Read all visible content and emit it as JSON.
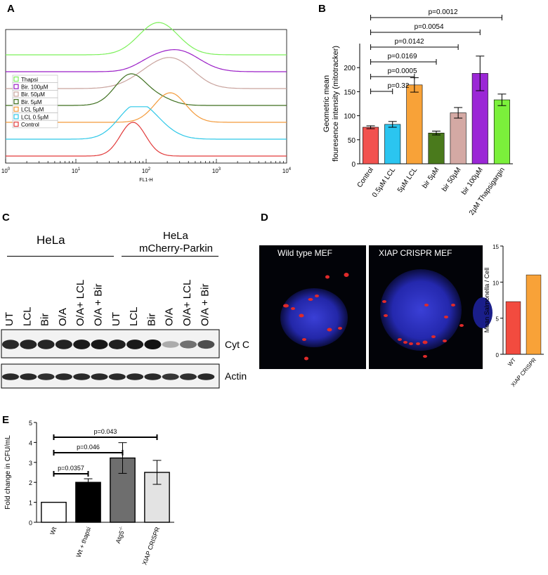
{
  "panels": {
    "A": "A",
    "B": "B",
    "C": "C",
    "D": "D",
    "E": "E"
  },
  "chart_data": [
    {
      "type": "line",
      "panel": "A",
      "xlabel": "FL1-H",
      "x_scale": "log",
      "xlim": [
        1,
        10000
      ],
      "x_ticks": [
        "10^0",
        "10^1",
        "10^2",
        "10^3",
        "10^4"
      ],
      "legend": [
        "Thapsi",
        "Bir. 100µM",
        "Bir. 50µM",
        "Bir. 5µM",
        "LCL 5µM",
        "LCL 0.5µM",
        "Control"
      ],
      "legend_placement": "left",
      "series": [
        {
          "name": "Thapsi",
          "color": "#7CF05A",
          "peak_x": 150
        },
        {
          "name": "Bir. 100µM",
          "color": "#9B1FC7",
          "peak_x": 290
        },
        {
          "name": "Bir. 50µM",
          "color": "#C9A49E",
          "peak_x": 170
        },
        {
          "name": "Bir. 5µM",
          "color": "#3E6F1E",
          "peak_x": 60
        },
        {
          "name": "LCL 5µM",
          "color": "#F39A3A",
          "peak_x": 220
        },
        {
          "name": "LCL 0.5µM",
          "color": "#2EC8E8",
          "peak_x": 70
        },
        {
          "name": "Control",
          "color": "#E23B3B",
          "peak_x": 65
        }
      ]
    },
    {
      "type": "bar",
      "panel": "B",
      "ylabel": "Geometric mean\nflouresence intensity (mitotracker)",
      "ylim": [
        0,
        250
      ],
      "y_ticks": [
        0,
        50,
        100,
        150,
        200
      ],
      "categories": [
        "Control",
        "0.5µM LCL",
        "5µM LCL",
        "bir 5µM",
        "bir 50µM",
        "bir 100µM",
        "2µM Thapsigargin"
      ],
      "values": [
        76,
        82,
        164,
        64,
        106,
        188,
        133
      ],
      "errors": [
        3,
        6,
        15,
        4,
        11,
        36,
        12
      ],
      "colors": [
        "#F2524F",
        "#2BC5F0",
        "#F8A238",
        "#4A7A1C",
        "#D4A9A4",
        "#9B27D6",
        "#7BF03B"
      ],
      "annotations": [
        {
          "text": "p=0.32",
          "from": 0,
          "to": 1
        },
        {
          "text": "p=0.0005",
          "from": 0,
          "to": 2
        },
        {
          "text": "p=0.0169",
          "from": 0,
          "to": 3
        },
        {
          "text": "p=0.0142",
          "from": 0,
          "to": 4
        },
        {
          "text": "p=0.0054",
          "from": 0,
          "to": 5
        },
        {
          "text": "p=0.0012",
          "from": 0,
          "to": 6
        }
      ]
    },
    {
      "type": "bar",
      "panel": "D",
      "ylabel": "Mean Salmonella / Cell",
      "ylim": [
        0,
        15
      ],
      "y_ticks": [
        0,
        5,
        10,
        15
      ],
      "categories": [
        "WT",
        "XIAP CRISPR"
      ],
      "values": [
        7.3,
        11
      ],
      "colors": [
        "#F24B3F",
        "#F8A238"
      ]
    },
    {
      "type": "bar",
      "panel": "E",
      "ylabel": "Fold change in CFU/mL",
      "ylim": [
        0,
        5
      ],
      "y_ticks": [
        0,
        1,
        2,
        3,
        4,
        5
      ],
      "categories": [
        "Wt",
        "Wt + thapsi",
        "Atg5-/-",
        "XIAP CRISPR"
      ],
      "category_labels": [
        "Wt",
        "Wt + thapsi",
        "Atg5",
        "XIAP CRISPR"
      ],
      "category_sup": [
        "",
        "",
        "-/-",
        ""
      ],
      "values": [
        1,
        2,
        3.22,
        2.5
      ],
      "errors": [
        0,
        0.18,
        0.77,
        0.6
      ],
      "colors": [
        "#FFFFFF",
        "#000000",
        "#6E6E6E",
        "#E3E3E3"
      ],
      "annotations": [
        {
          "text": "p=0.0357",
          "from": 0,
          "to": 1
        },
        {
          "text": "p=0.046",
          "from": 0,
          "to": 2
        },
        {
          "text": "p=0.043",
          "from": 0,
          "to": 3
        }
      ]
    }
  ],
  "panel_c": {
    "group_hela": "HeLa",
    "group_parkin_line1": "HeLa",
    "group_parkin_line2": "mCherry-Parkin",
    "lanes": [
      "UT",
      "LCL",
      "Bir",
      "O/A",
      "O/A+ LCL",
      "O/A + Bir",
      "UT",
      "LCL",
      "Bir",
      "O/A",
      "O/A+ LCL",
      "O/A + Bir"
    ],
    "cytc_intensity": [
      0.9,
      0.92,
      0.92,
      0.93,
      0.97,
      0.98,
      0.95,
      0.97,
      1.0,
      0.35,
      0.6,
      0.75
    ],
    "actin_intensity": [
      0.9,
      0.9,
      0.88,
      0.9,
      0.9,
      0.9,
      0.9,
      0.9,
      0.9,
      0.85,
      0.88,
      0.9
    ],
    "cytc_label": "Cyt C",
    "actin_label": "Actin"
  },
  "panel_d": {
    "image1_title": "Wild type MEF",
    "image2_title": "XIAP CRISPR MEF"
  }
}
